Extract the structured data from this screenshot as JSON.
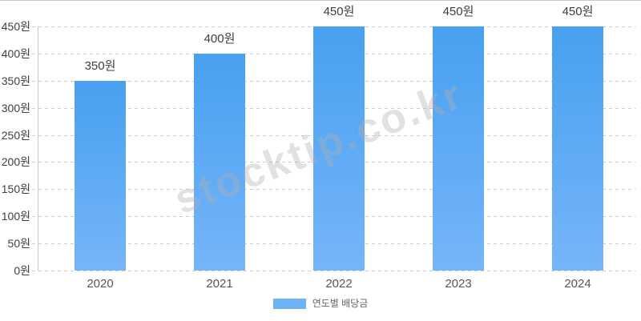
{
  "chart_data": {
    "type": "bar",
    "title": "",
    "categories": [
      "2020",
      "2021",
      "2022",
      "2023",
      "2024"
    ],
    "values": [
      350,
      400,
      450,
      450,
      450
    ],
    "bar_labels": [
      "350원",
      "400원",
      "450원",
      "450원",
      "450원"
    ],
    "series_name": "연도별 배당금",
    "unit": "원",
    "ylim": [
      0,
      450
    ],
    "ytick_values": [
      0,
      50,
      100,
      150,
      200,
      250,
      300,
      350,
      400,
      450
    ],
    "ytick_labels": [
      "0원",
      "50원",
      "100원",
      "150원",
      "200원",
      "250원",
      "300원",
      "350원",
      "400원",
      "450원"
    ],
    "grid": "horizontal-dashed",
    "legend_position": "bottom",
    "colors": {
      "bar_gradient_top": "#47a0f0",
      "bar_gradient_bottom": "#76b5f9",
      "legend_swatch": "#6fb3f7",
      "gridline": "#cccccc",
      "axis_line": "#c9c9c9"
    }
  },
  "legend": {
    "label": "연도별 배당금"
  },
  "watermark": {
    "text": "stocktip.co.kr"
  }
}
